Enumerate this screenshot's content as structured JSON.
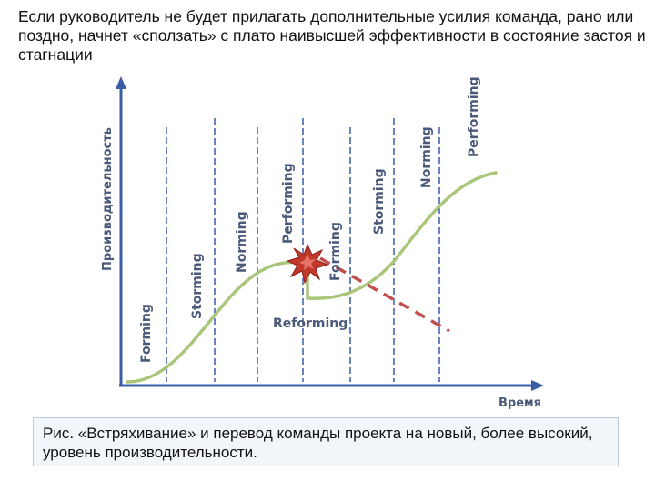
{
  "intro_text": "Если руководитель не будет прилагать дополнительные усилия команда, рано или поздно, начнет «сползать» с плато наивысшей эффективности в состояние застоя и стагнации",
  "diagram": {
    "y_axis_label": "Производительность",
    "x_axis_label": "Время",
    "stage_labels": [
      "Forming",
      "Storming",
      "Norming",
      "Performing",
      "Forming",
      "Storming",
      "Norming",
      "Performing"
    ],
    "reforming_label": "Reforming",
    "colors": {
      "curve": "#a9c67a",
      "decline": "#c0504d",
      "axis": "#3a5ea8",
      "divider": "#3a5ea8",
      "burst": "#c0392b"
    }
  },
  "caption_text": "Рис. «Встряхивание» и перевод команды проекта на новый, более высокий, уровень производительности."
}
